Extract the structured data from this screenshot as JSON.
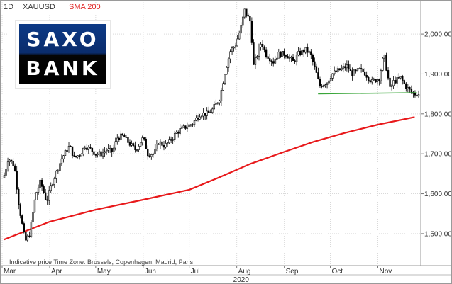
{
  "header": {
    "timeframe": "1D",
    "symbol": "XAUUSD",
    "indicator": "SMA 200"
  },
  "logo": {
    "line1": "SAXO",
    "line2": "BANK"
  },
  "footnote": "Indicative price    Time Zone: Brussels, Copenhagen, Madrid, Paris",
  "colors": {
    "price": "#000000",
    "sma": "#e8191b",
    "support": "#3aa63a",
    "grid": "#d9d9d9"
  },
  "chart_data": {
    "type": "line",
    "ylim": [
      1420,
      2080
    ],
    "y_ticks": [
      1500,
      1600,
      1700,
      1800,
      1900,
      2000
    ],
    "y_tick_labels": [
      "1,500.000",
      "1,600.000",
      "1,700.000",
      "1,800.000",
      "1,900.000",
      "2,000.000"
    ],
    "x_ticks": [
      "Mar",
      "Apr",
      "May",
      "Jun",
      "Jul",
      "Aug",
      "Sep",
      "Oct",
      "Nov"
    ],
    "year_label": "2020",
    "series": [
      {
        "name": "XAUUSD",
        "kind": "candles",
        "x": [
          "2020-03-02",
          "2020-03-05",
          "2020-03-09",
          "2020-03-12",
          "2020-03-16",
          "2020-03-19",
          "2020-03-23",
          "2020-03-26",
          "2020-03-30",
          "2020-04-02",
          "2020-04-06",
          "2020-04-09",
          "2020-04-14",
          "2020-04-17",
          "2020-04-21",
          "2020-04-24",
          "2020-04-28",
          "2020-05-01",
          "2020-05-05",
          "2020-05-08",
          "2020-05-12",
          "2020-05-15",
          "2020-05-19",
          "2020-05-22",
          "2020-05-27",
          "2020-06-01",
          "2020-06-04",
          "2020-06-08",
          "2020-06-11",
          "2020-06-15",
          "2020-06-18",
          "2020-06-22",
          "2020-06-25",
          "2020-06-30",
          "2020-07-03",
          "2020-07-08",
          "2020-07-13",
          "2020-07-16",
          "2020-07-21",
          "2020-07-24",
          "2020-07-28",
          "2020-07-31",
          "2020-08-04",
          "2020-08-06",
          "2020-08-10",
          "2020-08-12",
          "2020-08-17",
          "2020-08-20",
          "2020-08-25",
          "2020-08-28",
          "2020-09-02",
          "2020-09-07",
          "2020-09-10",
          "2020-09-15",
          "2020-09-18",
          "2020-09-22",
          "2020-09-24",
          "2020-09-29",
          "2020-10-02",
          "2020-10-07",
          "2020-10-12",
          "2020-10-15",
          "2020-10-20",
          "2020-10-23",
          "2020-10-28",
          "2020-11-02",
          "2020-11-05",
          "2020-11-09",
          "2020-11-11",
          "2020-11-16",
          "2020-11-19",
          "2020-11-24"
        ],
        "values": [
          1640,
          1690,
          1670,
          1570,
          1480,
          1500,
          1600,
          1630,
          1580,
          1620,
          1660,
          1690,
          1720,
          1690,
          1700,
          1720,
          1710,
          1700,
          1700,
          1710,
          1705,
          1740,
          1745,
          1730,
          1710,
          1740,
          1700,
          1700,
          1730,
          1720,
          1730,
          1750,
          1760,
          1770,
          1775,
          1800,
          1800,
          1810,
          1840,
          1900,
          1960,
          1970,
          2020,
          2060,
          2030,
          1920,
          1980,
          1950,
          1930,
          1950,
          1950,
          1930,
          1950,
          1960,
          1950,
          1900,
          1870,
          1880,
          1900,
          1910,
          1920,
          1900,
          1910,
          1905,
          1880,
          1890,
          1950,
          1860,
          1880,
          1890,
          1870,
          1850
        ]
      },
      {
        "name": "SMA 200",
        "kind": "line",
        "x": [
          "2020-03-02",
          "2020-04-01",
          "2020-05-01",
          "2020-06-01",
          "2020-07-01",
          "2020-07-20",
          "2020-08-10",
          "2020-09-01",
          "2020-09-20",
          "2020-10-10",
          "2020-11-01",
          "2020-11-25"
        ],
        "values": [
          1485,
          1530,
          1560,
          1585,
          1610,
          1640,
          1675,
          1705,
          1730,
          1752,
          1773,
          1792
        ]
      },
      {
        "name": "support",
        "kind": "line",
        "x": [
          "2020-09-23",
          "2020-11-26"
        ],
        "values": [
          1850,
          1853
        ]
      }
    ]
  }
}
